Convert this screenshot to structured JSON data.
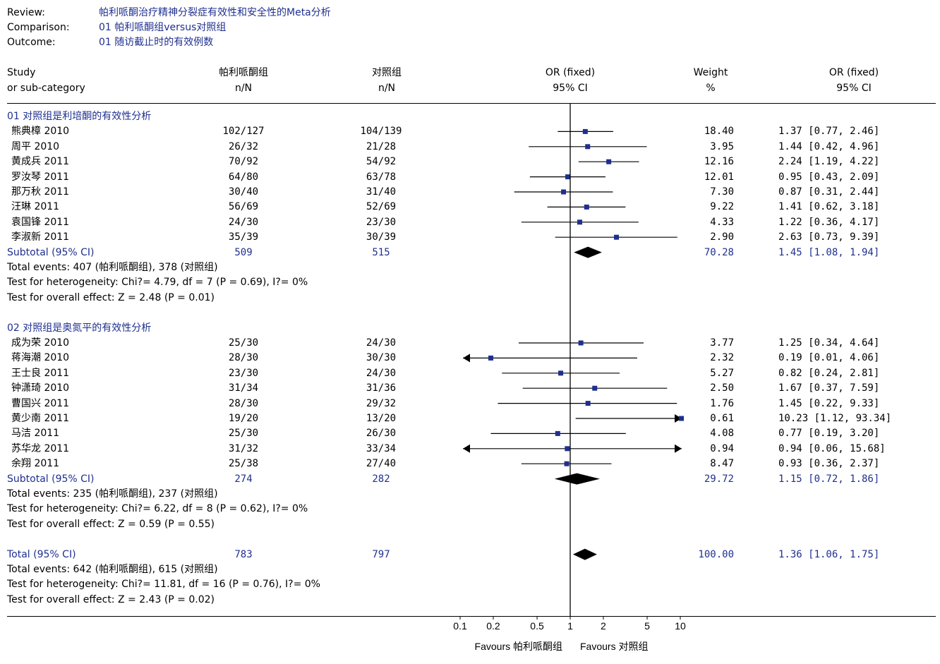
{
  "header": {
    "review_label": "Review:",
    "review_value": "帕利哌酮治疗精神分裂症有效性和安全性的Meta分析",
    "comparison_label": "Comparison:",
    "comparison_value": "01 帕利哌酮组versus对照组",
    "outcome_label": "Outcome:",
    "outcome_value": "01 随访截止时的有效例数"
  },
  "columns": {
    "study_line1": "Study",
    "study_line2": "or sub-category",
    "group1_line1": "帕利哌酮组",
    "group1_line2": "n/N",
    "group2_line1": "对照组",
    "group2_line2": "n/N",
    "plot_line1": "OR (fixed)",
    "plot_line2": "95% CI",
    "weight_line1": "Weight",
    "weight_line2": "%",
    "or_line1": "OR (fixed)",
    "or_line2": "95% CI"
  },
  "chart_data": {
    "type": "forest",
    "scale": "log",
    "xlim": [
      0.1,
      10
    ],
    "ticks": [
      "0.1",
      "0.2",
      "0.5",
      "1",
      "2",
      "5",
      "10"
    ],
    "tick_values": [
      0.1,
      0.2,
      0.5,
      1,
      2,
      5,
      10
    ],
    "favours_left": "Favours 帕利哌酮组",
    "favours_right": "Favours 对照组",
    "subgroups": [
      {
        "title": "01 对照组是利培酮的有效性分析",
        "studies": [
          {
            "name": "熊典樟 2010",
            "n1": "102/127",
            "n2": "104/139",
            "weight": "18.40",
            "or": 1.37,
            "lo": 0.77,
            "hi": 2.46,
            "ci_text": "1.37 [0.77, 2.46]"
          },
          {
            "name": "周平 2010",
            "n1": "26/32",
            "n2": "21/28",
            "weight": "3.95",
            "or": 1.44,
            "lo": 0.42,
            "hi": 4.96,
            "ci_text": "1.44 [0.42, 4.96]"
          },
          {
            "name": "黄成兵 2011",
            "n1": "70/92",
            "n2": "54/92",
            "weight": "12.16",
            "or": 2.24,
            "lo": 1.19,
            "hi": 4.22,
            "ci_text": "2.24 [1.19, 4.22]"
          },
          {
            "name": "罗汝琴 2011",
            "n1": "64/80",
            "n2": "63/78",
            "weight": "12.01",
            "or": 0.95,
            "lo": 0.43,
            "hi": 2.09,
            "ci_text": "0.95 [0.43, 2.09]"
          },
          {
            "name": "那万秋 2011",
            "n1": "30/40",
            "n2": "31/40",
            "weight": "7.30",
            "or": 0.87,
            "lo": 0.31,
            "hi": 2.44,
            "ci_text": "0.87 [0.31, 2.44]"
          },
          {
            "name": "汪琳 2011",
            "n1": "56/69",
            "n2": "52/69",
            "weight": "9.22",
            "or": 1.41,
            "lo": 0.62,
            "hi": 3.18,
            "ci_text": "1.41 [0.62, 3.18]"
          },
          {
            "name": "袁国锋 2011",
            "n1": "24/30",
            "n2": "23/30",
            "weight": "4.33",
            "or": 1.22,
            "lo": 0.36,
            "hi": 4.17,
            "ci_text": "1.22 [0.36, 4.17]"
          },
          {
            "name": "李淑新 2011",
            "n1": "35/39",
            "n2": "30/39",
            "weight": "2.90",
            "or": 2.63,
            "lo": 0.73,
            "hi": 9.39,
            "ci_text": "2.63 [0.73, 9.39]"
          }
        ],
        "subtotal": {
          "label": "Subtotal (95% CI)",
          "n1": "509",
          "n2": "515",
          "weight": "70.28",
          "or": 1.45,
          "lo": 1.08,
          "hi": 1.94,
          "ci_text": "1.45 [1.08, 1.94]"
        },
        "events": "Total events: 407 (帕利哌酮组), 378 (对照组)",
        "heterogeneity": "Test for heterogeneity: Chi?= 4.79, df = 7 (P = 0.69), I?= 0%",
        "overall": "Test for overall effect: Z = 2.48 (P = 0.01)"
      },
      {
        "title": "02 对照组是奥氮平的有效性分析",
        "studies": [
          {
            "name": "成为荣 2010",
            "n1": "25/30",
            "n2": "24/30",
            "weight": "3.77",
            "or": 1.25,
            "lo": 0.34,
            "hi": 4.64,
            "ci_text": "1.25 [0.34, 4.64]"
          },
          {
            "name": "蒋海潮 2010",
            "n1": "28/30",
            "n2": "30/30",
            "weight": "2.32",
            "or": 0.19,
            "lo": 0.01,
            "hi": 4.06,
            "ci_text": "0.19 [0.01, 4.06]"
          },
          {
            "name": "王士良 2011",
            "n1": "23/30",
            "n2": "24/30",
            "weight": "5.27",
            "or": 0.82,
            "lo": 0.24,
            "hi": 2.81,
            "ci_text": "0.82 [0.24, 2.81]"
          },
          {
            "name": "钟潇琦 2010",
            "n1": "31/34",
            "n2": "31/36",
            "weight": "2.50",
            "or": 1.67,
            "lo": 0.37,
            "hi": 7.59,
            "ci_text": "1.67 [0.37, 7.59]"
          },
          {
            "name": "曹国兴 2011",
            "n1": "28/30",
            "n2": "29/32",
            "weight": "1.76",
            "or": 1.45,
            "lo": 0.22,
            "hi": 9.33,
            "ci_text": "1.45 [0.22, 9.33]"
          },
          {
            "name": "黄少南 2011",
            "n1": "19/20",
            "n2": "13/20",
            "weight": "0.61",
            "or": 10.23,
            "lo": 1.12,
            "hi": 93.34,
            "ci_text": "10.23 [1.12, 93.34]"
          },
          {
            "name": "马洁 2011",
            "n1": "25/30",
            "n2": "26/30",
            "weight": "4.08",
            "or": 0.77,
            "lo": 0.19,
            "hi": 3.2,
            "ci_text": "0.77 [0.19, 3.20]"
          },
          {
            "name": "苏华龙 2011",
            "n1": "31/32",
            "n2": "33/34",
            "weight": "0.94",
            "or": 0.94,
            "lo": 0.06,
            "hi": 15.68,
            "ci_text": "0.94 [0.06, 15.68]"
          },
          {
            "name": "余翔 2011",
            "n1": "25/38",
            "n2": "27/40",
            "weight": "8.47",
            "or": 0.93,
            "lo": 0.36,
            "hi": 2.37,
            "ci_text": "0.93 [0.36, 2.37]"
          }
        ],
        "subtotal": {
          "label": "Subtotal (95% CI)",
          "n1": "274",
          "n2": "282",
          "weight": "29.72",
          "or": 1.15,
          "lo": 0.72,
          "hi": 1.86,
          "ci_text": "1.15 [0.72, 1.86]"
        },
        "events": "Total events: 235 (帕利哌酮组), 237 (对照组)",
        "heterogeneity": "Test for heterogeneity: Chi?= 6.22, df = 8 (P = 0.62), I?= 0%",
        "overall": "Test for overall effect: Z = 0.59 (P = 0.55)"
      }
    ],
    "total": {
      "label": "Total (95% CI)",
      "n1": "783",
      "n2": "797",
      "weight": "100.00",
      "or": 1.36,
      "lo": 1.06,
      "hi": 1.75,
      "ci_text": "1.36 [1.06, 1.75]",
      "events": "Total events: 642 (帕利哌酮组), 615 (对照组)",
      "heterogeneity": "Test for heterogeneity: Chi?= 11.81, df = 16 (P = 0.76), I?= 0%",
      "overall": "Test for overall effect: Z = 2.43 (P = 0.02)"
    }
  }
}
